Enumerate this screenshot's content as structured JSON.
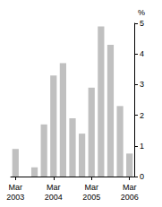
{
  "chart_data": {
    "type": "bar",
    "categories": [
      "Mar\n2003",
      null,
      null,
      null,
      "Mar\n2004",
      null,
      null,
      null,
      "Mar\n2005",
      null,
      null,
      null,
      "Mar\n2006"
    ],
    "values": [
      0.9,
      0,
      0.3,
      1.7,
      3.3,
      3.7,
      1.9,
      1.4,
      2.9,
      4.9,
      4.3,
      2.3,
      0.75
    ],
    "color": "#c0c0c0",
    "ylabel": "%",
    "ylim": [
      0,
      5
    ],
    "yticks": [
      0,
      1,
      2,
      3,
      4,
      5
    ],
    "grid": false
  }
}
